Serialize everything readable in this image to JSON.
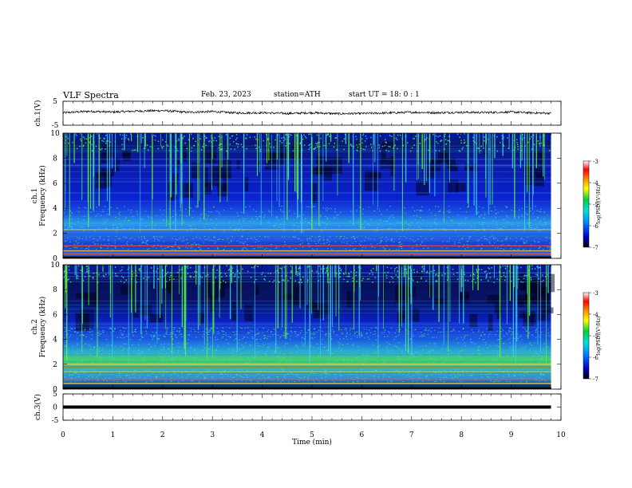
{
  "header": {
    "title": "VLF  Spectra",
    "date": "Feb. 23, 2023",
    "station": "station=ATH",
    "start_ut": "start  UT  =    18: 0   : 1"
  },
  "colors": {
    "spectro_bg": "#0a1fc8",
    "spectro_dark": "#000018",
    "streak": "#5cff2e",
    "cyan": "#39d8e8",
    "band_hot": "#ff4a1a",
    "band_warm": "#ffd21e",
    "trace": "#000000"
  },
  "chart_data": [
    {
      "type": "line",
      "name": "ch1-waveform",
      "ylabel": "ch.1(V)",
      "ylim": [
        -5,
        5
      ],
      "y_ticks": [
        "5",
        "-5"
      ],
      "x": [
        0,
        0.5,
        1,
        1.5,
        2,
        2.5,
        3,
        3.5,
        4,
        4.5,
        5,
        5.5,
        6,
        6.5,
        7,
        7.5,
        8,
        8.5,
        9,
        9.5,
        9.8
      ],
      "values": [
        0.2,
        0.8,
        0.5,
        0.9,
        1.1,
        0.4,
        0.7,
        0.1,
        0.2,
        -0.1,
        0.2,
        -0.2,
        -0.1,
        0.1,
        0.4,
        0.2,
        0.4,
        0.3,
        0.5,
        0.1,
        0.0
      ]
    },
    {
      "type": "heatmap",
      "name": "ch1-spectrogram",
      "ylabel_top": "ch.1",
      "ylabel": "Frequency  (kHz)",
      "ylim": [
        0,
        10
      ],
      "y_ticks": [
        "0",
        "2",
        "4",
        "6",
        "8",
        "10"
      ],
      "colorbar": {
        "label": "log(PSD)(V²/Hz)",
        "range": [
          -7,
          -3
        ],
        "ticks": [
          "-3",
          "-4",
          "-5",
          "-6",
          "-7"
        ]
      }
    },
    {
      "type": "heatmap",
      "name": "ch2-spectrogram",
      "ylabel_top": "ch.2",
      "ylabel": "Frequency  (kHz)",
      "ylim": [
        0,
        10
      ],
      "y_ticks": [
        "0",
        "2",
        "4",
        "6",
        "8",
        "10"
      ],
      "colorbar": {
        "label": "log(PSD)(V²/Hz)",
        "range": [
          -7,
          -3
        ],
        "ticks": [
          "-3",
          "-4",
          "-5",
          "-6",
          "-7"
        ]
      }
    },
    {
      "type": "line",
      "name": "ch3-waveform",
      "ylabel": "ch.3(V)",
      "ylim": [
        -5,
        5
      ],
      "y_ticks": [
        "5",
        "0",
        "-5"
      ],
      "x": [
        0,
        9.8
      ],
      "values": [
        0,
        0
      ]
    }
  ],
  "x_axis": {
    "label": "Time  (min)",
    "xlim": [
      0,
      10
    ],
    "ticks": [
      "0",
      "1",
      "2",
      "3",
      "4",
      "5",
      "6",
      "7",
      "8",
      "9",
      "10"
    ]
  }
}
